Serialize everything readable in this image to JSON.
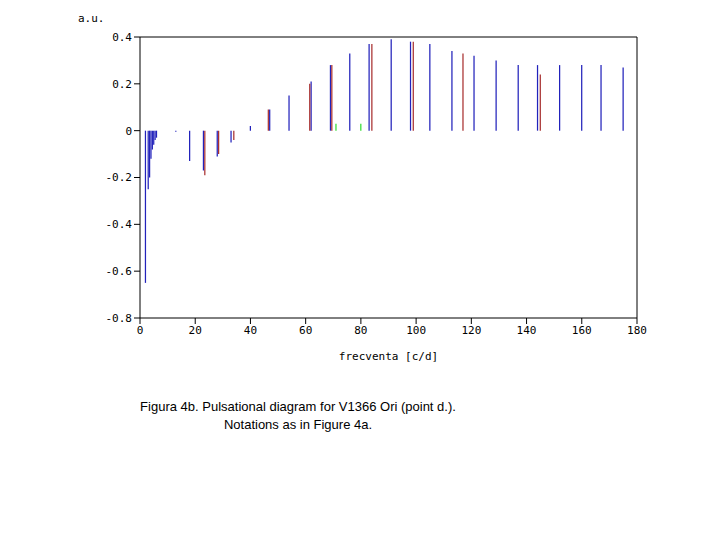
{
  "chart_data": {
    "type": "bar",
    "y_label": "a.u.",
    "x_label": "frecventa [c/d]",
    "caption": [
      "Figura 4b.  Pulsational diagram for V1366 Ori  (point d.).",
      "Notations as in Figure 4a."
    ],
    "xlim": [
      0,
      180
    ],
    "xticks": [
      0,
      20,
      40,
      60,
      80,
      100,
      120,
      140,
      160,
      180
    ],
    "ylim": [
      -0.8,
      0.4
    ],
    "yticks": [
      -0.8,
      -0.6,
      -0.4,
      -0.2,
      0,
      0.2,
      0.4
    ],
    "series": [
      {
        "color": "#2222bb",
        "x": [
          2,
          3,
          3.5,
          4,
          4.5,
          5,
          5.5,
          6,
          13,
          18,
          23,
          28,
          33,
          40,
          47,
          54,
          62,
          69,
          76,
          83,
          91,
          98,
          105,
          113,
          121,
          129,
          137,
          144,
          152,
          160,
          167,
          175
        ],
        "values": [
          -0.65,
          -0.25,
          -0.2,
          -0.12,
          -0.08,
          -0.06,
          -0.04,
          -0.03,
          -0.005,
          -0.13,
          -0.17,
          -0.11,
          -0.05,
          0.02,
          0.09,
          0.15,
          0.21,
          0.28,
          0.33,
          0.37,
          0.39,
          0.38,
          0.37,
          0.34,
          0.32,
          0.3,
          0.28,
          0.28,
          0.28,
          0.28,
          0.28,
          0.27
        ]
      },
      {
        "color": "#a83030",
        "x": [
          23.5,
          28.5,
          34,
          46.5,
          61.5,
          69.5,
          84,
          99,
          117,
          145
        ],
        "values": [
          -0.19,
          -0.1,
          -0.04,
          0.09,
          0.2,
          0.28,
          0.37,
          0.38,
          0.33,
          0.24
        ]
      },
      {
        "color": "#33dd33",
        "x": [
          71,
          80
        ],
        "values": [
          0.03,
          0.03
        ]
      }
    ]
  }
}
